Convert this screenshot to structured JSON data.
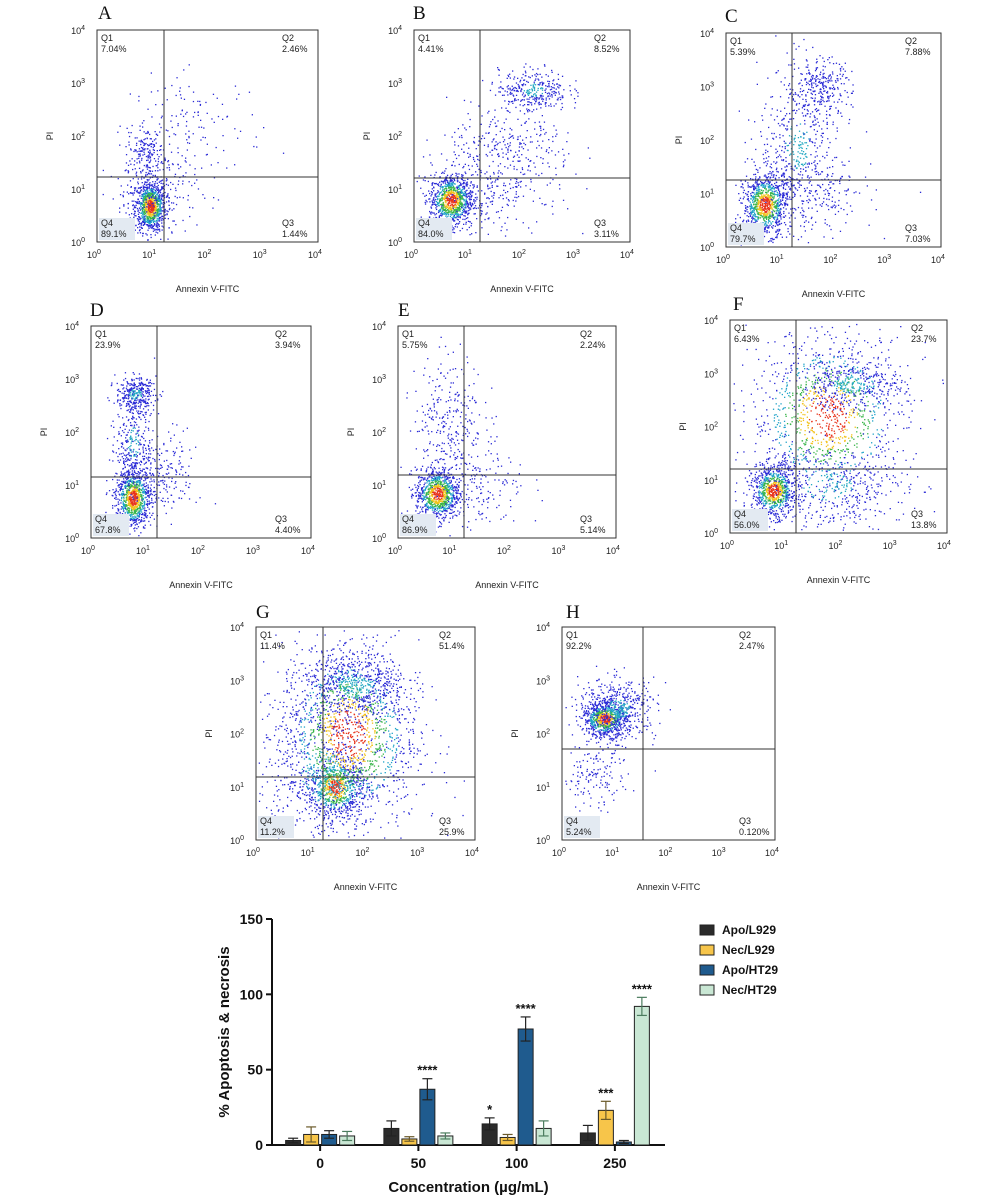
{
  "flow_panels": [
    {
      "letter": "A",
      "q1": "7.04%",
      "q2": "2.46%",
      "q3": "1.44%",
      "q4": "89.1%",
      "ylabel": "PI",
      "xlabel": "Annexin V-FITC"
    },
    {
      "letter": "B",
      "q1": "4.41%",
      "q2": "8.52%",
      "q3": "3.11%",
      "q4": "84.0%",
      "ylabel": "PI",
      "xlabel": "Annexin V-FITC"
    },
    {
      "letter": "C",
      "q1": "5.39%",
      "q2": "7.88%",
      "q3": "7.03%",
      "q4": "79.7%",
      "ylabel": "PI",
      "xlabel": "Annexin V-FITC"
    },
    {
      "letter": "D",
      "q1": "23.9%",
      "q2": "3.94%",
      "q3": "4.40%",
      "q4": "67.8%",
      "ylabel": "PI",
      "xlabel": "Annexin V-FITC"
    },
    {
      "letter": "E",
      "q1": "5.75%",
      "q2": "2.24%",
      "q3": "5.14%",
      "q4": "86.9%",
      "ylabel": "PI",
      "xlabel": "Annexin V-FITC"
    },
    {
      "letter": "F",
      "q1": "6.43%",
      "q2": "23.7%",
      "q3": "13.8%",
      "q4": "56.0%",
      "ylabel": "PI",
      "xlabel": "Annexin V-FITC"
    },
    {
      "letter": "G",
      "q1": "11.4%",
      "q2": "51.4%",
      "q3": "25.9%",
      "q4": "11.2%",
      "ylabel": "PI",
      "xlabel": "Annexin V-FITC"
    },
    {
      "letter": "H",
      "q1": "92.2%",
      "q2": "2.47%",
      "q3": "0.120%",
      "q4": "5.24%",
      "ylabel": "PI",
      "xlabel": "Annexin V-FITC"
    }
  ],
  "quadrant_names": [
    "Q1",
    "Q2",
    "Q3",
    "Q4"
  ],
  "axis_ticks": [
    "0",
    "1",
    "2",
    "3",
    "4"
  ],
  "axis_tick_base": "10",
  "chart_data": {
    "type": "bar",
    "title": "",
    "xlabel": "Concentration (µg/mL)",
    "ylabel": "% Apoptosis & necrosis",
    "ylim": [
      0,
      150
    ],
    "yticks": [
      0,
      50,
      100,
      150
    ],
    "categories": [
      "0",
      "50",
      "100",
      "250"
    ],
    "series": [
      {
        "name": "Apo/L929",
        "color": "#2b2b2b",
        "values": [
          3,
          11,
          14,
          8
        ],
        "errors": [
          1.5,
          5,
          4,
          5
        ],
        "stars": [
          "",
          "",
          "*",
          ""
        ]
      },
      {
        "name": "Nec/L929",
        "color": "#f7c54a",
        "values": [
          7,
          4,
          5,
          23
        ],
        "errors": [
          5,
          1.5,
          2,
          6
        ],
        "stars": [
          "",
          "",
          "",
          "***"
        ]
      },
      {
        "name": "Apo/HT29",
        "color": "#1f5b8e",
        "values": [
          7,
          37,
          77,
          2
        ],
        "errors": [
          2.5,
          7,
          8,
          1
        ],
        "stars": [
          "",
          "****",
          "****",
          ""
        ]
      },
      {
        "name": "Nec/HT29",
        "color": "#c9e7d4",
        "values": [
          6,
          6,
          11,
          92
        ],
        "errors": [
          3,
          2,
          5,
          6
        ],
        "stars": [
          "",
          "",
          "",
          "****"
        ]
      }
    ],
    "legend_position": "top-right",
    "grid": false
  }
}
